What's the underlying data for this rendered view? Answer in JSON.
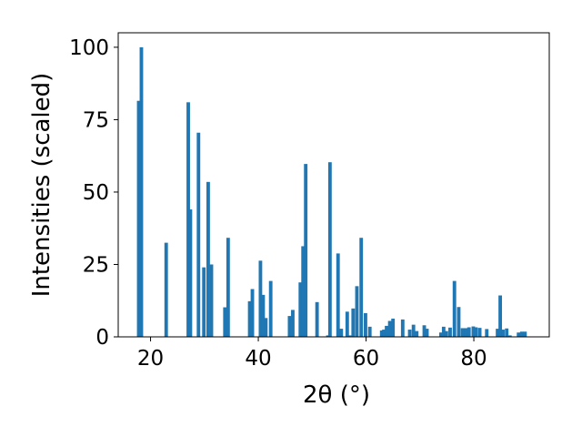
{
  "chart_data": {
    "type": "bar",
    "xlabel": "2θ (°)",
    "ylabel": "Intensities (scaled)",
    "xlim": [
      14,
      94
    ],
    "ylim": [
      0,
      105
    ],
    "x_ticks": [
      20,
      40,
      60,
      80
    ],
    "y_ticks": [
      0,
      25,
      50,
      75,
      100
    ],
    "bar_width": 0.65,
    "bar_color": "#1f77b4",
    "grid": false,
    "x": [
      17.8,
      18.3,
      22.9,
      27.0,
      27.4,
      28.9,
      29.9,
      30.7,
      31.3,
      33.8,
      34.4,
      38.4,
      38.9,
      40.4,
      40.9,
      41.4,
      42.3,
      45.8,
      46.4,
      47.8,
      48.3,
      48.8,
      50.9,
      52.9,
      53.3,
      54.8,
      55.4,
      56.5,
      57.1,
      57.6,
      58.3,
      59.1,
      59.9,
      60.7,
      62.9,
      63.3,
      63.8,
      64.4,
      65.0,
      66.8,
      68.1,
      68.8,
      69.4,
      70.8,
      71.3,
      73.9,
      74.4,
      74.9,
      75.6,
      76.4,
      77.2,
      77.9,
      78.5,
      79.1,
      79.9,
      80.4,
      81.1,
      82.4,
      84.4,
      84.9,
      85.4,
      86.1,
      86.7,
      88.3,
      88.9,
      89.5
    ],
    "values": [
      81.5,
      100,
      32.5,
      81,
      44,
      70.5,
      24,
      53.5,
      25,
      10.2,
      34.2,
      12.3,
      16.5,
      26.3,
      14.5,
      6.5,
      19.3,
      7.2,
      9.3,
      18.8,
      31.3,
      59.7,
      12,
      0.5,
      60.3,
      28.8,
      2.8,
      8.7,
      0.5,
      9.8,
      17.5,
      34.2,
      8.2,
      3.5,
      2.2,
      2.5,
      3.8,
      5.5,
      6.3,
      6,
      2.5,
      4.2,
      2,
      4,
      2.8,
      1.5,
      3.5,
      2,
      3.2,
      19.3,
      10.3,
      3,
      3,
      3.3,
      3.6,
      3.3,
      3.1,
      2.7,
      2.8,
      14.3,
      2.5,
      2.9,
      0.5,
      1.5,
      1.8,
      1.8
    ]
  }
}
